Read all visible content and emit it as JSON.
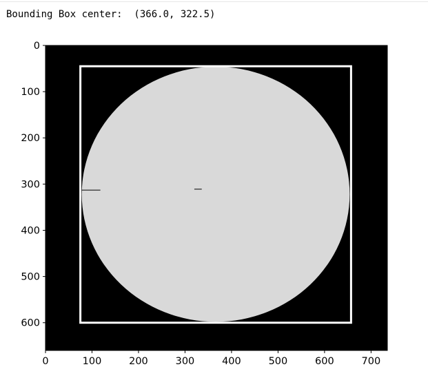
{
  "output": {
    "text": "Bounding Box center:  (366.0, 322.5)"
  },
  "chart_data": {
    "type": "image",
    "xlim": [
      0,
      735
    ],
    "ylim": [
      660,
      0
    ],
    "x_ticks": [
      0,
      100,
      200,
      300,
      400,
      500,
      600,
      700
    ],
    "y_ticks": [
      0,
      100,
      200,
      300,
      400,
      500,
      600
    ],
    "background_color": "#000000",
    "blob_color": "#d9d9d9",
    "box_color": "#ffffff",
    "blob": {
      "center": [
        366.0,
        322.0
      ],
      "rx": 288,
      "ry": 276
    },
    "bounding_box": {
      "x0": 75,
      "y0": 45,
      "x1": 657,
      "y1": 600
    },
    "marks": [
      {
        "x0": 78,
        "x1": 118,
        "y": 313
      },
      {
        "x0": 320,
        "x1": 336,
        "y": 311
      }
    ]
  }
}
